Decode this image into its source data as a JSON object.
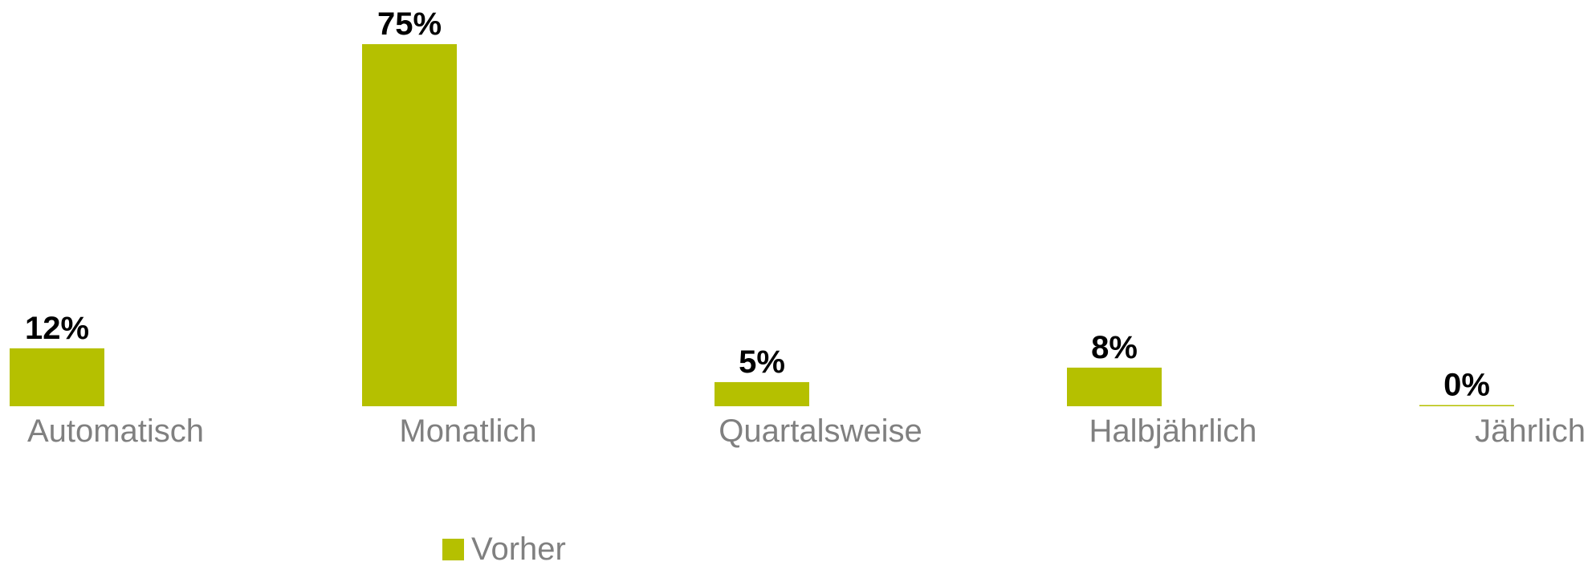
{
  "chart_data": {
    "type": "bar",
    "categories": [
      "Automatisch",
      "Monatlich",
      "Quartalsweise",
      "Halbjährlich",
      "Jährlich"
    ],
    "series": [
      {
        "name": "Vorher",
        "values": [
          12,
          75,
          5,
          8,
          0
        ],
        "labels": [
          "12%",
          "75%",
          "5%",
          "8%",
          "0%"
        ],
        "color": "#b5c000"
      }
    ],
    "title": "",
    "xlabel": "",
    "ylabel": "",
    "ylim": [
      0,
      75
    ],
    "grid": false,
    "legend": "bottom",
    "label_color": "#000000",
    "category_color": "#808080"
  }
}
